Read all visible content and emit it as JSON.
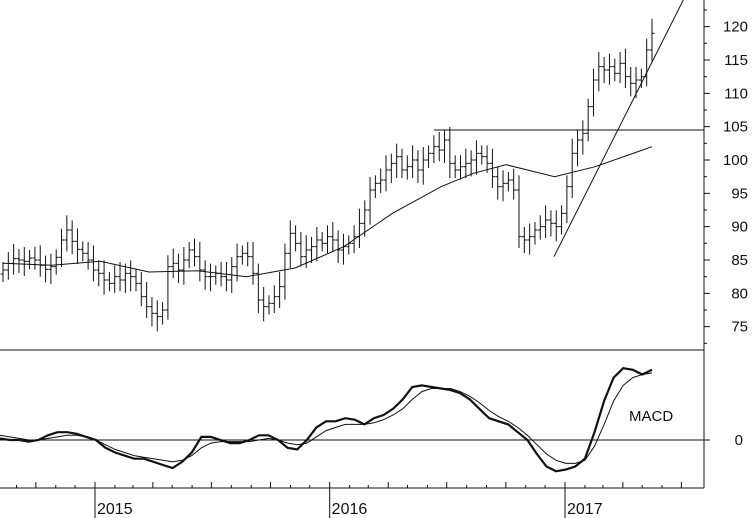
{
  "chart_data": [
    {
      "type": "ohlc",
      "panel": "price",
      "y_ticks": [
        75,
        80,
        85,
        90,
        95,
        100,
        105,
        110,
        115,
        120
      ],
      "ylim": [
        71.5,
        124
      ],
      "x_axis": {
        "type": "date",
        "range": [
          "2014-07-01",
          "2017-07-01"
        ],
        "year_labels": [
          {
            "label": "2015",
            "date": "2015-01-01"
          },
          {
            "label": "2016",
            "date": "2016-01-01"
          },
          {
            "label": "2017",
            "date": "2017-01-01"
          }
        ]
      },
      "series": [
        {
          "kind": "weekly_bars",
          "values_close": [
            83.5,
            84.5,
            85.2,
            85.0,
            84.8,
            85.3,
            85.0,
            84.2,
            83.6,
            84.0,
            85.4,
            88.0,
            89.5,
            87.8,
            86.6,
            86.0,
            85.0,
            83.5,
            83.0,
            82.0,
            81.5,
            82.5,
            82.0,
            83.0,
            82.5,
            81.5,
            79.5,
            78.0,
            77.0,
            76.5,
            77.5,
            84.0,
            84.5,
            83.5,
            85.0,
            86.5,
            85.5,
            83.5,
            82.5,
            82.5,
            83.0,
            82.5,
            82.0,
            84.0,
            85.5,
            86.0,
            85.5,
            83.0,
            79.0,
            78.0,
            78.5,
            79.5,
            81.0,
            86.0,
            89.0,
            87.5,
            85.5,
            86.5,
            87.0,
            88.0,
            87.5,
            88.5,
            88.0,
            86.5,
            87.0,
            87.5,
            88.5,
            90.5,
            92.5,
            95.5,
            96.5,
            97.0,
            98.5,
            99.5,
            100.5,
            98.5,
            99.0,
            100.0,
            98.5,
            100.0,
            101.0,
            102.0,
            101.5,
            103.0,
            99.5,
            98.5,
            99.0,
            99.5,
            100.0,
            101.0,
            100.5,
            99.5,
            97.5,
            96.0,
            96.5,
            97.0,
            95.5,
            88.5,
            88.0,
            88.5,
            89.5,
            90.0,
            91.0,
            90.5,
            90.0,
            92.0,
            96.0,
            101.0,
            103.0,
            104.0,
            108.0,
            112.0,
            114.0,
            113.5,
            114.0,
            113.0,
            114.5,
            112.5,
            111.5,
            112.0,
            112.5,
            116.5,
            119.0
          ]
        },
        {
          "kind": "moving_average",
          "points": [
            [
              0,
              84.5
            ],
            [
              12,
              84.2
            ],
            [
              24,
              84.8
            ],
            [
              36,
              83.2
            ],
            [
              48,
              83.4
            ],
            [
              60,
              82.5
            ],
            [
              72,
              83.8
            ],
            [
              84,
              87.0
            ],
            [
              96,
              92.0
            ],
            [
              108,
              96.0
            ],
            [
              116,
              98.0
            ],
            [
              124,
              99.3
            ],
            [
              136,
              97.5
            ],
            [
              146,
              99.0
            ],
            [
              160,
              102.0
            ]
          ]
        },
        {
          "kind": "horizontal_resistance",
          "y": 104.5
        },
        {
          "kind": "trendline",
          "from": [
            0,
            85.5
          ],
          "to": [
            1,
            126
          ]
        }
      ]
    },
    {
      "type": "line",
      "panel": "macd",
      "label": "MACD",
      "y_ticks": [
        0
      ],
      "series": [
        {
          "style": "thick",
          "values": [
            0.1,
            0.0,
            0.0,
            -0.1,
            0.0,
            0.3,
            0.5,
            0.5,
            0.4,
            0.2,
            0.0,
            -0.5,
            -0.8,
            -1.0,
            -1.2,
            -1.2,
            -1.4,
            -1.6,
            -1.8,
            -1.4,
            -0.8,
            0.2,
            0.2,
            0.0,
            -0.2,
            -0.2,
            0.0,
            0.3,
            0.3,
            0.0,
            -0.5,
            -0.6,
            0.0,
            0.8,
            1.2,
            1.2,
            1.4,
            1.3,
            1.0,
            1.4,
            1.6,
            2.0,
            2.6,
            3.4,
            3.5,
            3.4,
            3.3,
            3.2,
            3.0,
            2.6,
            2.0,
            1.4,
            1.2,
            1.0,
            0.5,
            0.0,
            -0.9,
            -1.7,
            -2.0,
            -1.9,
            -1.7,
            -1.2,
            0.5,
            2.5,
            4.0,
            4.6,
            4.5,
            4.2,
            4.5
          ]
        },
        {
          "style": "thin",
          "values": [
            0.3,
            0.2,
            0.1,
            0.0,
            0.0,
            0.1,
            0.2,
            0.3,
            0.3,
            0.2,
            0.0,
            -0.3,
            -0.6,
            -0.8,
            -1.0,
            -1.1,
            -1.2,
            -1.3,
            -1.4,
            -1.3,
            -1.0,
            -0.5,
            -0.2,
            -0.1,
            -0.1,
            -0.1,
            -0.1,
            0.0,
            0.1,
            0.0,
            -0.2,
            -0.3,
            -0.2,
            0.2,
            0.6,
            0.8,
            1.0,
            1.0,
            1.0,
            1.1,
            1.3,
            1.6,
            2.0,
            2.6,
            3.1,
            3.3,
            3.3,
            3.3,
            3.1,
            2.8,
            2.4,
            1.9,
            1.5,
            1.2,
            0.8,
            0.3,
            -0.3,
            -0.9,
            -1.3,
            -1.5,
            -1.5,
            -1.3,
            -0.4,
            1.0,
            2.5,
            3.5,
            4.0,
            4.2,
            4.3
          ]
        }
      ]
    }
  ]
}
